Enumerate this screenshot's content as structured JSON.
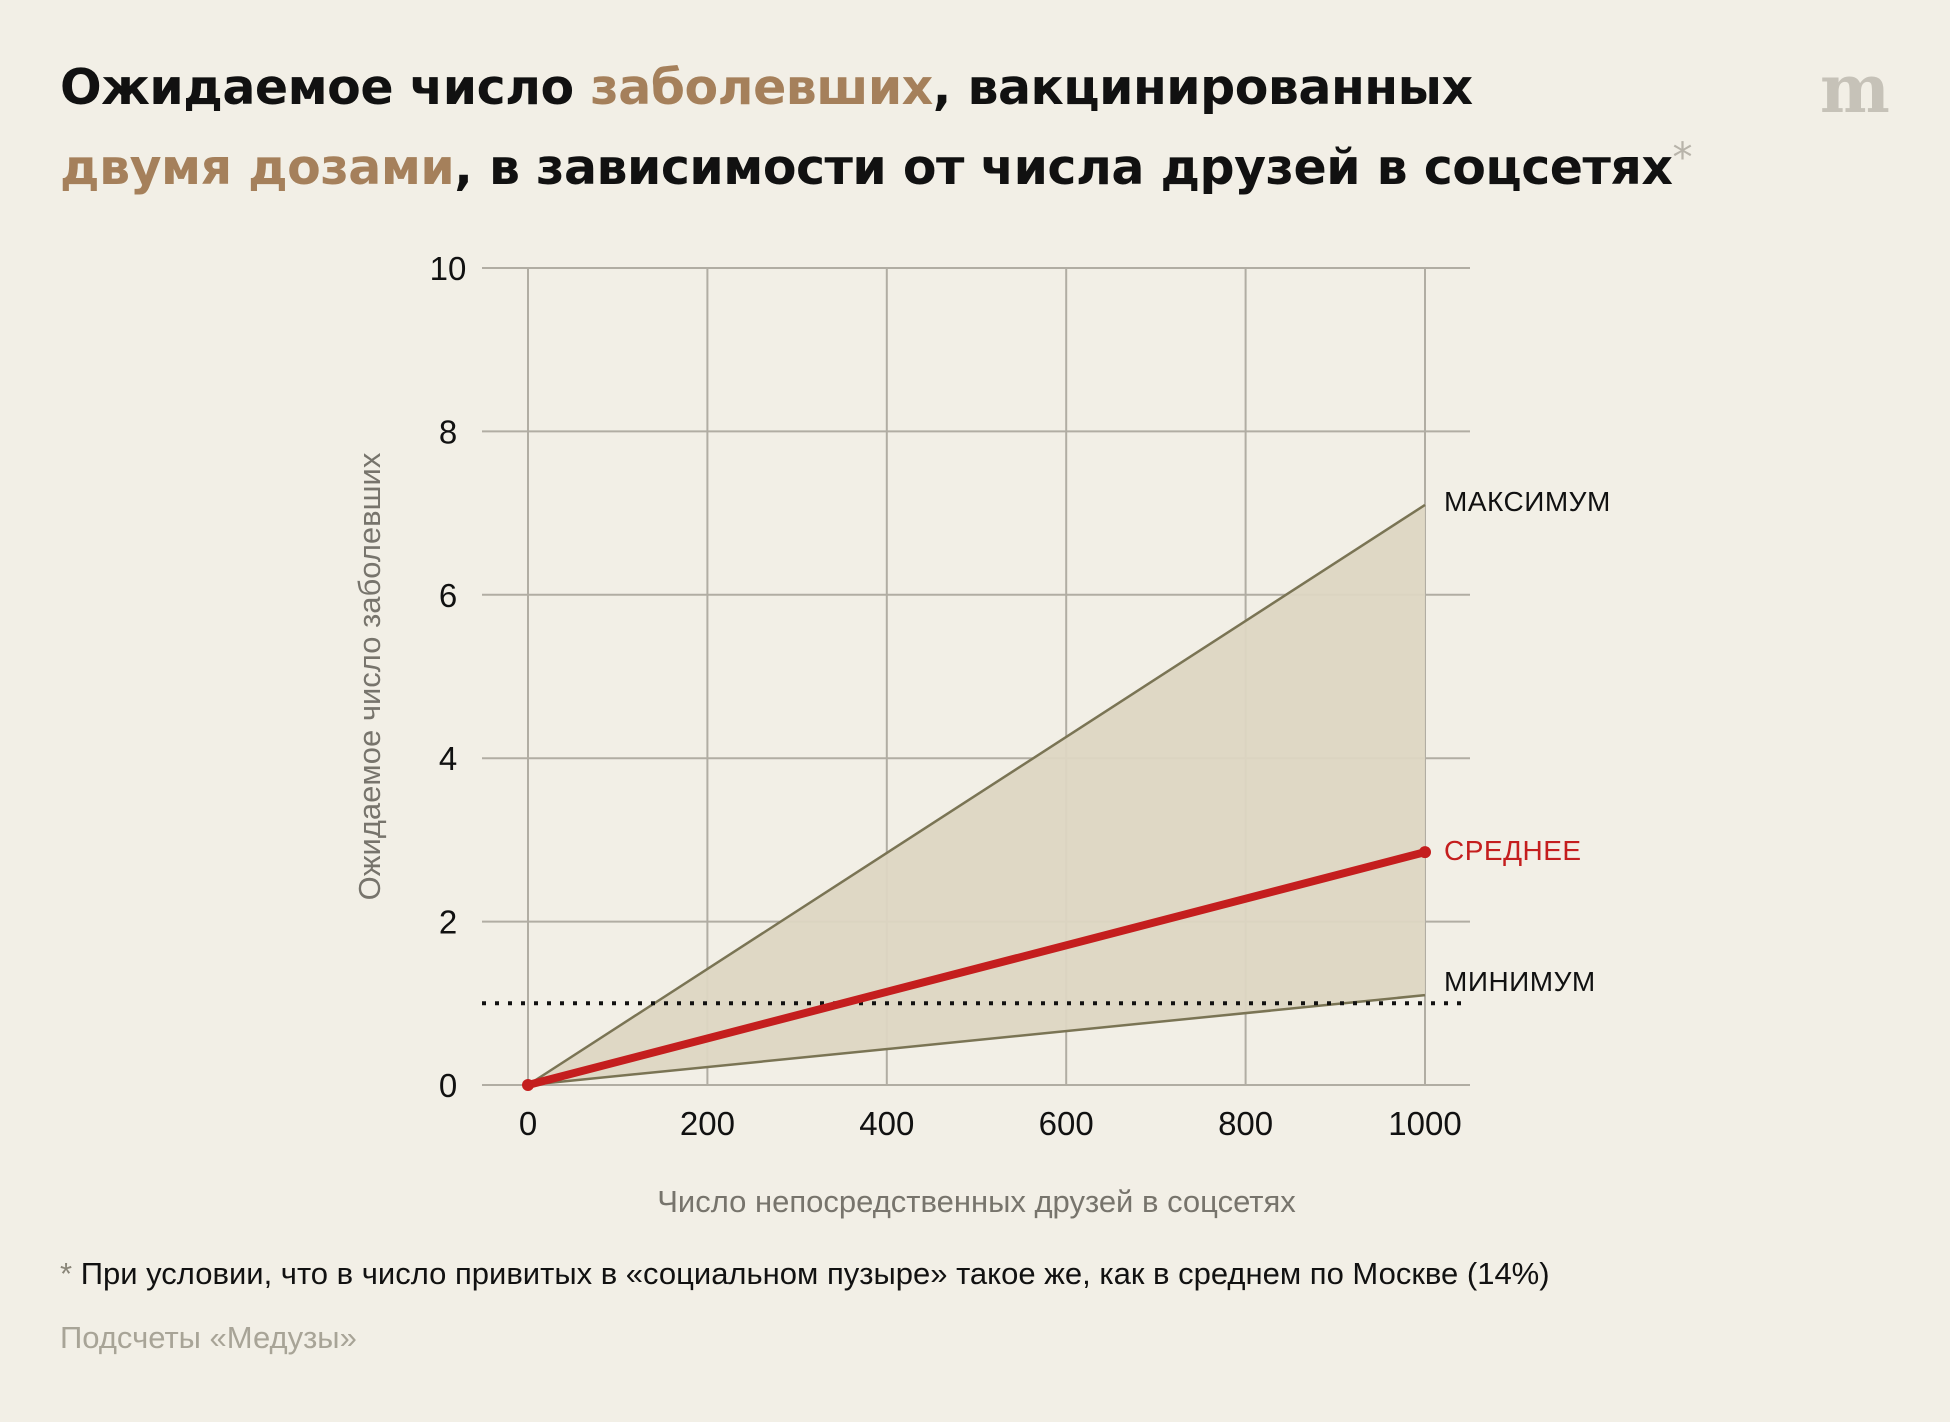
{
  "title": {
    "part1": "Ожидаемое число ",
    "part2": "заболевших",
    "part3": ", вакцинированных ",
    "part4": "двумя дозами",
    "part5": ", в зависимости от числа друзей в соцсетях",
    "asterisk": "*"
  },
  "logo": "m",
  "footnote": {
    "asterisk": "*",
    "text": " При условии, что в число привитых в «социальном пузыре» такое же, как в среднем по Москве (14%)"
  },
  "source": "Подсчеты «Медузы»",
  "colors": {
    "accent": "#a5805b",
    "mean": "#c41e1e",
    "band_fill": "#ddd6c3",
    "band_edge": "#7a7454",
    "grid": "#b1ada3"
  },
  "chart_data": {
    "type": "area",
    "xlabel": "Число непосредственных друзей в соцсетях",
    "ylabel": "Ожидаемое число заболевших",
    "x": [
      0,
      1000
    ],
    "xlim": [
      0,
      1000
    ],
    "ylim": [
      0,
      10
    ],
    "xticks": [
      0,
      200,
      400,
      600,
      800,
      1000
    ],
    "yticks": [
      0,
      2,
      4,
      6,
      8,
      10
    ],
    "grid": true,
    "series": [
      {
        "name": "МАКСИМУМ",
        "values": [
          0,
          7.1
        ]
      },
      {
        "name": "СРЕДНЕЕ",
        "values": [
          0,
          2.85
        ]
      },
      {
        "name": "МИНИМУМ",
        "values": [
          0,
          1.1
        ]
      }
    ],
    "reference_line": {
      "y": 1,
      "style": "dotted"
    }
  }
}
